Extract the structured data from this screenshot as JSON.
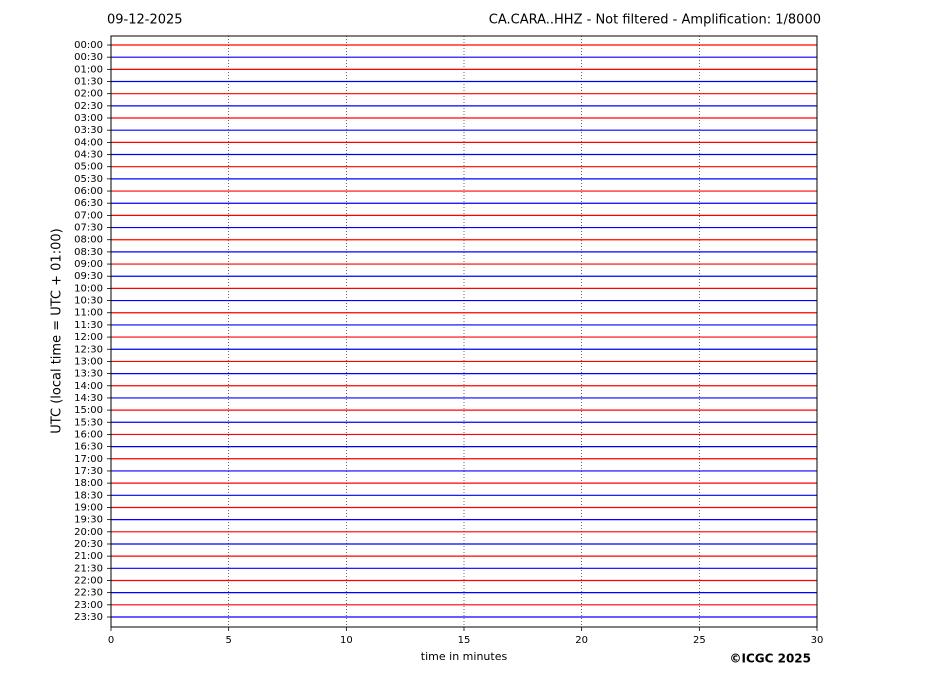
{
  "chart_data": {
    "type": "helicorder",
    "date": "09-12-2025",
    "title": "CA.CARA..HHZ - Not filtered - Amplification: 1/8000",
    "xlabel": "time in minutes",
    "ylabel": "UTC (local time = UTC + 01:00)",
    "copyright": "©ICGC 2025",
    "categories": [
      "00:00",
      "00:30",
      "01:00",
      "01:30",
      "02:00",
      "02:30",
      "03:00",
      "03:30",
      "04:00",
      "04:30",
      "05:00",
      "05:30",
      "06:00",
      "06:30",
      "07:00",
      "07:30",
      "08:00",
      "08:30",
      "09:00",
      "09:30",
      "10:00",
      "10:30",
      "11:00",
      "11:30",
      "12:00",
      "12:30",
      "13:00",
      "13:30",
      "14:00",
      "14:30",
      "15:00",
      "15:30",
      "16:00",
      "16:30",
      "17:00",
      "17:30",
      "18:00",
      "18:30",
      "19:00",
      "19:30",
      "20:00",
      "20:30",
      "21:00",
      "21:30",
      "22:00",
      "22:30",
      "23:00",
      "23:30"
    ],
    "colors": [
      "#ff0000",
      "#0000ff"
    ],
    "xlim": [
      0,
      30
    ],
    "xticks": [
      0,
      5,
      10,
      15,
      20,
      25,
      30
    ],
    "grid": true
  }
}
